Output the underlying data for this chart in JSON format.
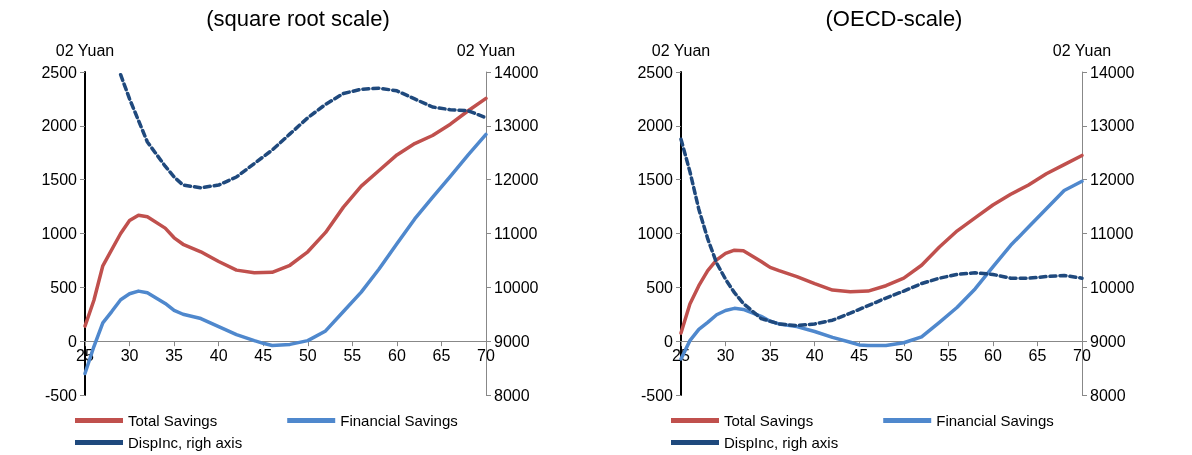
{
  "chart_data": [
    {
      "type": "line",
      "title": "(square root scale)",
      "ylabel": "02 Yuan",
      "y2label": "02 Yuan",
      "xlim": [
        25,
        70
      ],
      "xticks": [
        25,
        30,
        35,
        40,
        45,
        50,
        55,
        60,
        65,
        70
      ],
      "ylim": [
        -500,
        2500
      ],
      "yticks": [
        -500,
        0,
        500,
        1000,
        1500,
        2000,
        2500
      ],
      "y2lim": [
        8000,
        14000
      ],
      "y2ticks": [
        8000,
        9000,
        10000,
        11000,
        12000,
        13000,
        14000
      ],
      "grid": false,
      "legend": "bottom",
      "marker": "none",
      "series": [
        {
          "name": "Total Savings",
          "color": "#c0504d",
          "line_style": "solid",
          "x": [
            25,
            26,
            27,
            29,
            30,
            31,
            32,
            34,
            35,
            36,
            38,
            40,
            42,
            44,
            46,
            48,
            50,
            52,
            54,
            56,
            58,
            60,
            62,
            64,
            66,
            68,
            70
          ],
          "values": [
            140,
            380,
            700,
            1000,
            1120,
            1170,
            1155,
            1050,
            960,
            900,
            830,
            740,
            660,
            635,
            640,
            705,
            830,
            1010,
            1245,
            1440,
            1585,
            1730,
            1835,
            1910,
            2015,
            2140,
            2255
          ]
        },
        {
          "name": "Financial Savings",
          "color": "#4f88cd",
          "line_style": "solid",
          "x": [
            25,
            26,
            27,
            28,
            29,
            30,
            31,
            32,
            34,
            35,
            36,
            38,
            40,
            42,
            44,
            45,
            46,
            48,
            50,
            52,
            54,
            56,
            58,
            60,
            62,
            64,
            66,
            68,
            70
          ],
          "values": [
            -300,
            -50,
            170,
            275,
            385,
            440,
            465,
            450,
            350,
            285,
            250,
            210,
            135,
            60,
            5,
            -20,
            -40,
            -30,
            5,
            95,
            275,
            455,
            670,
            905,
            1135,
            1335,
            1530,
            1730,
            1920
          ]
        },
        {
          "name": "DispInc, righ axis",
          "color": "#1f497d",
          "line_style": "dashed",
          "axis": "y2",
          "x": [
            29,
            30,
            31,
            32,
            34,
            35,
            36,
            38,
            40,
            42,
            44,
            46,
            48,
            50,
            52,
            54,
            56,
            58,
            60,
            62,
            64,
            66,
            68,
            70
          ],
          "values": [
            13950,
            13500,
            13100,
            12700,
            12250,
            12050,
            11900,
            11850,
            11900,
            12050,
            12300,
            12550,
            12850,
            13150,
            13400,
            13600,
            13680,
            13700,
            13650,
            13500,
            13350,
            13300,
            13280,
            13150
          ]
        }
      ]
    },
    {
      "type": "line",
      "title": "(OECD-scale)",
      "ylabel": "02 Yuan",
      "y2label": "02 Yuan",
      "xlim": [
        25,
        70
      ],
      "xticks": [
        25,
        30,
        35,
        40,
        45,
        50,
        55,
        60,
        65,
        70
      ],
      "ylim": [
        -500,
        2500
      ],
      "yticks": [
        -500,
        0,
        500,
        1000,
        1500,
        2000,
        2500
      ],
      "y2lim": [
        8000,
        14000
      ],
      "y2ticks": [
        8000,
        9000,
        10000,
        11000,
        12000,
        13000,
        14000
      ],
      "grid": false,
      "legend": "bottom",
      "marker": "none",
      "series": [
        {
          "name": "Total Savings",
          "color": "#c0504d",
          "line_style": "solid",
          "x": [
            25,
            26,
            27,
            28,
            29,
            30,
            31,
            32,
            34,
            35,
            36,
            38,
            40,
            42,
            44,
            46,
            48,
            50,
            52,
            54,
            56,
            58,
            60,
            62,
            64,
            66,
            68,
            70
          ],
          "values": [
            75,
            345,
            515,
            655,
            755,
            815,
            845,
            840,
            740,
            685,
            655,
            600,
            535,
            475,
            460,
            465,
            515,
            585,
            705,
            875,
            1025,
            1145,
            1265,
            1365,
            1450,
            1555,
            1640,
            1725
          ]
        },
        {
          "name": "Financial Savings",
          "color": "#4f88cd",
          "line_style": "solid",
          "x": [
            25,
            26,
            27,
            28,
            29,
            30,
            31,
            32,
            34,
            35,
            36,
            38,
            40,
            42,
            44,
            45,
            46,
            48,
            50,
            52,
            54,
            56,
            58,
            60,
            62,
            64,
            66,
            68,
            70
          ],
          "values": [
            -165,
            5,
            110,
            175,
            245,
            285,
            305,
            295,
            230,
            185,
            160,
            135,
            90,
            35,
            -10,
            -35,
            -40,
            -40,
            -15,
            40,
            175,
            315,
            485,
            690,
            890,
            1060,
            1230,
            1400,
            1485
          ]
        },
        {
          "name": "DispInc, righ axis",
          "color": "#1f497d",
          "line_style": "dashed",
          "axis": "y2",
          "x": [
            25,
            26,
            27,
            28,
            29,
            30,
            31,
            32,
            34,
            36,
            38,
            40,
            42,
            44,
            46,
            48,
            50,
            52,
            54,
            56,
            58,
            60,
            62,
            64,
            66,
            68,
            70
          ],
          "values": [
            12750,
            12150,
            11450,
            10900,
            10450,
            10150,
            9900,
            9700,
            9420,
            9320,
            9290,
            9320,
            9390,
            9520,
            9660,
            9800,
            9930,
            10070,
            10170,
            10240,
            10270,
            10240,
            10170,
            10170,
            10200,
            10220,
            10170
          ]
        }
      ]
    }
  ]
}
